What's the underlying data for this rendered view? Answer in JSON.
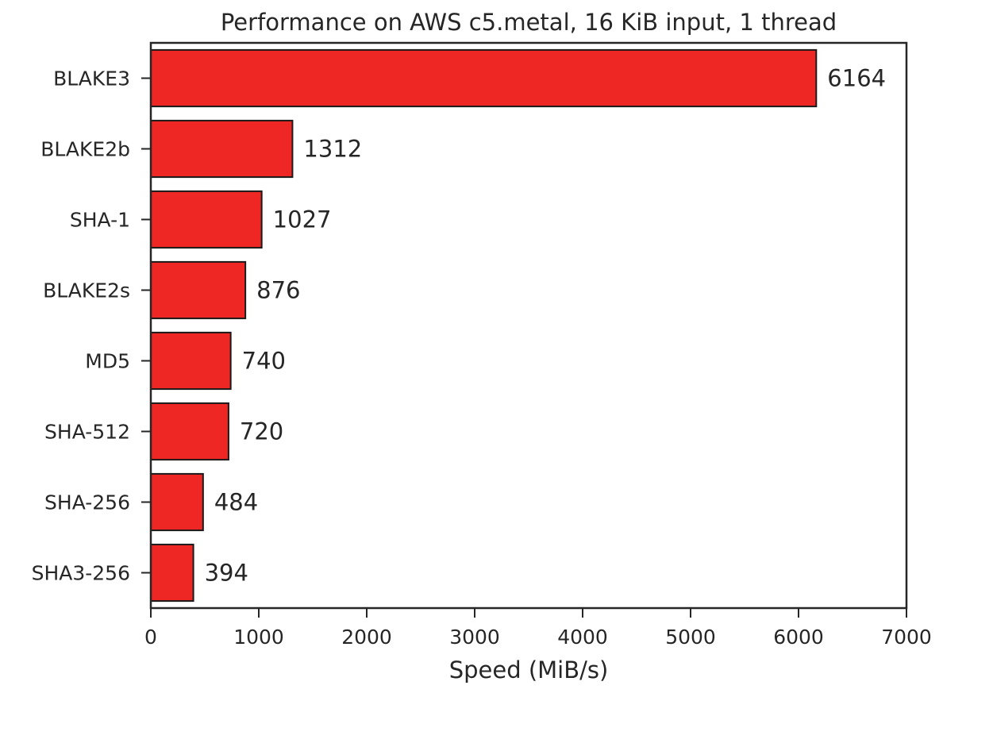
{
  "chart_data": {
    "type": "bar",
    "orientation": "horizontal",
    "title": "Performance on AWS c5.metal, 16 KiB input, 1 thread",
    "xlabel": "Speed (MiB/s)",
    "ylabel": "",
    "categories": [
      "BLAKE3",
      "BLAKE2b",
      "SHA-1",
      "BLAKE2s",
      "MD5",
      "SHA-512",
      "SHA-256",
      "SHA3-256"
    ],
    "values": [
      6164,
      1312,
      1027,
      876,
      740,
      720,
      484,
      394
    ],
    "value_labels": [
      "6164",
      "1312",
      "1027",
      "876",
      "740",
      "720",
      "484",
      "394"
    ],
    "xlim": [
      0,
      7000
    ],
    "xticks": [
      0,
      1000,
      2000,
      3000,
      4000,
      5000,
      6000,
      7000
    ],
    "xtick_labels": [
      "0",
      "1000",
      "2000",
      "3000",
      "4000",
      "5000",
      "6000",
      "7000"
    ],
    "grid": false,
    "legend": "none",
    "bar_color": "#ee2624",
    "edge_color": "#1a1a1a"
  }
}
